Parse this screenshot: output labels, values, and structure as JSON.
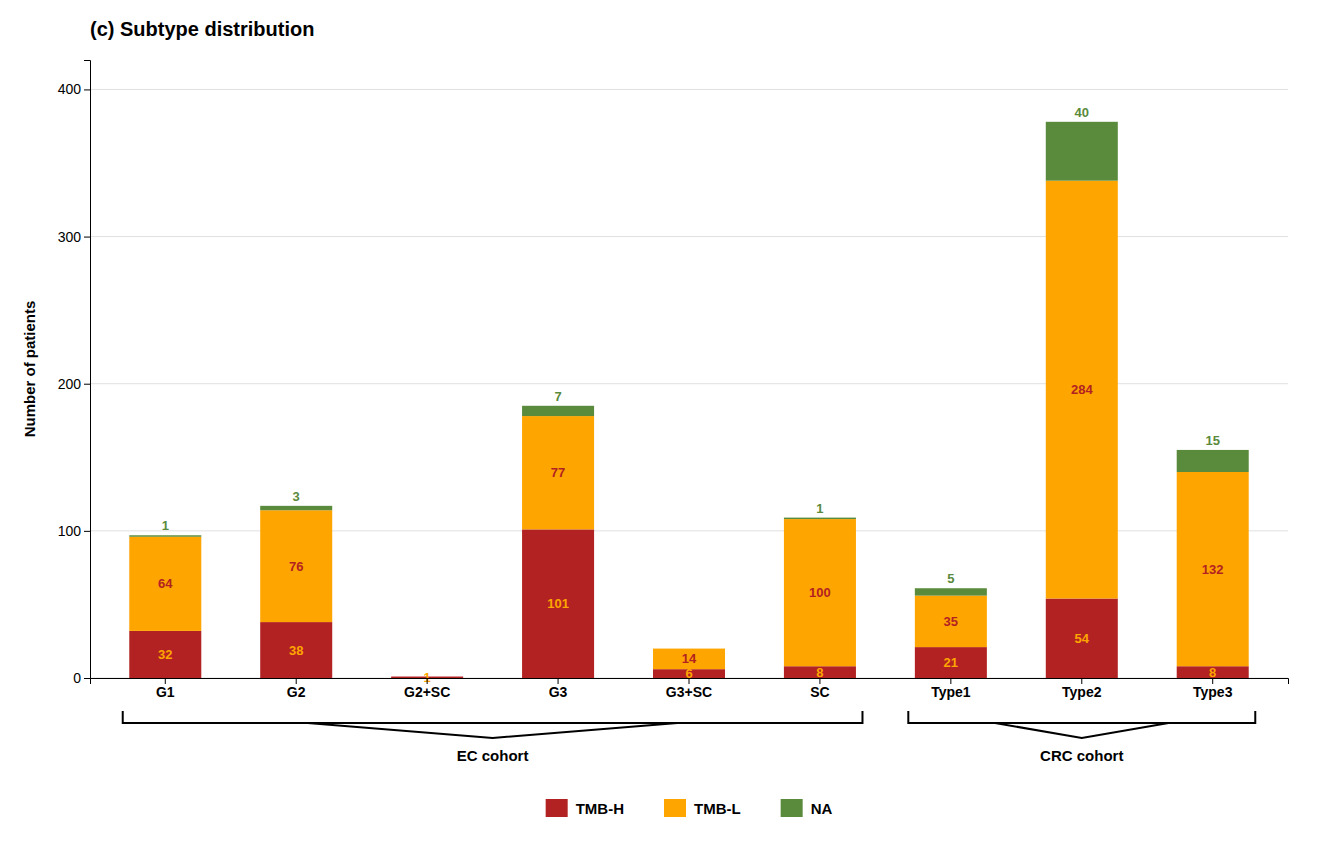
{
  "chart_data": {
    "type": "bar",
    "stacked": true,
    "title": "(c) Subtype distribution",
    "ylabel": "Number of patients",
    "categories": [
      "G1",
      "G2",
      "G2+SC",
      "G3",
      "G3+SC",
      "SC",
      "Type1",
      "Type2",
      "Type3"
    ],
    "series": [
      {
        "name": "TMB-H",
        "color": "#B22222",
        "values": [
          32,
          38,
          1,
          101,
          6,
          8,
          21,
          54,
          8
        ]
      },
      {
        "name": "TMB-L",
        "color": "#FFA500",
        "values": [
          64,
          76,
          0,
          77,
          14,
          100,
          35,
          284,
          132
        ]
      },
      {
        "name": "NA",
        "color": "#5A8A3C",
        "values": [
          1,
          3,
          0,
          7,
          0,
          1,
          5,
          40,
          15
        ]
      }
    ],
    "ylim": [
      0,
      420
    ],
    "yticks": [
      0,
      100,
      200,
      300,
      400
    ],
    "grid": true,
    "data_labels": true,
    "legend": "bottom",
    "annotations": [
      {
        "text": "EC cohort",
        "from": "G1",
        "to": "SC"
      },
      {
        "text": "CRC cohort",
        "from": "Type1",
        "to": "Type3"
      }
    ]
  }
}
